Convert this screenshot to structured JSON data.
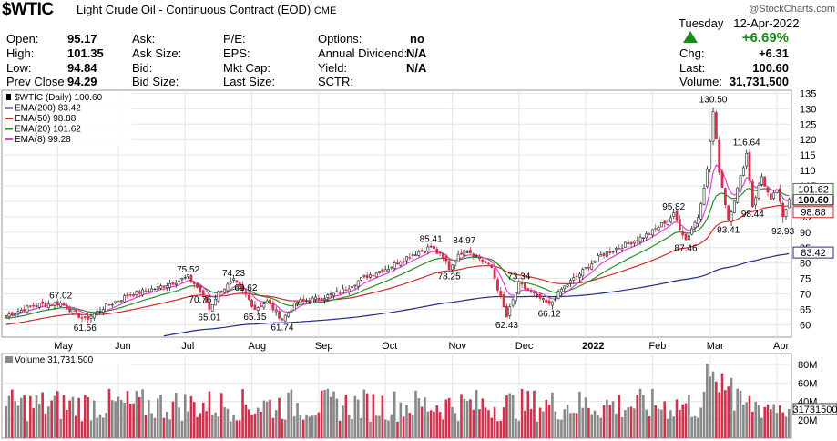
{
  "header": {
    "symbol": "$WTIC",
    "description": "Light Crude Oil - Continuous Contract (EOD)",
    "exchange": "CME",
    "watermark": "@StockCharts.com",
    "day": "Tuesday",
    "date": "12-Apr-2022",
    "change_pct": "+6.69%",
    "up_color": "#1a8a1a"
  },
  "quote": {
    "open_label": "Open:",
    "open": "95.17",
    "high_label": "High:",
    "high": "101.35",
    "low_label": "Low:",
    "low": "94.84",
    "prevclose_label": "Prev Close:",
    "prevclose": "94.29",
    "ask_label": "Ask:",
    "asksize_label": "Ask Size:",
    "bid_label": "Bid:",
    "bidsize_label": "Bid Size:",
    "pe_label": "P/E:",
    "eps_label": "EPS:",
    "mktcap_label": "Mkt Cap:",
    "lastsize_label": "Last Size:",
    "options_label": "Options:",
    "options": "no",
    "dividend_label": "Annual Dividend:",
    "dividend": "N/A",
    "yield_label": "Yield:",
    "yield": "N/A",
    "sctr_label": "SCTR:",
    "chg_label": "Chg:",
    "chg": "+6.31",
    "last_label": "Last:",
    "last": "100.60",
    "volume_label": "Volume:",
    "volume": "31,731,500"
  },
  "chart_data": {
    "type": "candlestick",
    "legend": [
      {
        "text": "$WTIC (Daily) 100.60",
        "color": "#000000"
      },
      {
        "text": "EMA(200) 83.42",
        "color": "#1f2e8c"
      },
      {
        "text": "EMA(50) 98.88",
        "color": "#d42a2a"
      },
      {
        "text": "EMA(20) 101.62",
        "color": "#2a8c2a"
      },
      {
        "text": "EMA(8) 99.28",
        "color": "#e040e0"
      }
    ],
    "price_ticks": [
      60,
      65,
      70,
      75,
      80,
      85,
      90,
      95,
      100,
      105,
      110,
      115,
      120,
      125,
      130,
      135
    ],
    "ylim": [
      56,
      136
    ],
    "price_badges": [
      {
        "label": "100.60",
        "value": 100.6,
        "color": "#000000",
        "bg": "#ffffff"
      },
      {
        "label": "101.62",
        "value": 101.62,
        "color": "#2a8c2a",
        "bg": "#ffffff"
      },
      {
        "label": "98.88",
        "value": 98.88,
        "color": "#d42a2a",
        "bg": "#ffffff"
      },
      {
        "label": "83.42",
        "value": 83.42,
        "color": "#1f2e8c",
        "bg": "#ffffff"
      }
    ],
    "months": [
      "May",
      "Jun",
      "Jul",
      "Aug",
      "Sep",
      "Oct",
      "Nov",
      "Dec",
      "2022",
      "Feb",
      "Mar",
      "Apr"
    ],
    "month_index": [
      17,
      37,
      59,
      81,
      103,
      125,
      147,
      169,
      191,
      213,
      232,
      254
    ],
    "annotations": [
      {
        "label": "67.02",
        "index": 18,
        "value": 67.02,
        "pos": "above"
      },
      {
        "label": "61.56",
        "index": 26,
        "value": 61.56,
        "pos": "below"
      },
      {
        "label": "75.52",
        "index": 60,
        "value": 75.52,
        "pos": "above"
      },
      {
        "label": "70.76",
        "index": 64,
        "value": 70.76,
        "pos": "below"
      },
      {
        "label": "65.01",
        "index": 67,
        "value": 65.01,
        "pos": "below"
      },
      {
        "label": "74.23",
        "index": 75,
        "value": 74.23,
        "pos": "above"
      },
      {
        "label": "69.62",
        "index": 79,
        "value": 69.62,
        "pos": "above"
      },
      {
        "label": "65.15",
        "index": 82,
        "value": 65.15,
        "pos": "below"
      },
      {
        "label": "61.74",
        "index": 91,
        "value": 61.74,
        "pos": "below"
      },
      {
        "label": "85.41",
        "index": 140,
        "value": 85.41,
        "pos": "above"
      },
      {
        "label": "84.97",
        "index": 151,
        "value": 84.97,
        "pos": "above"
      },
      {
        "label": "78.25",
        "index": 146,
        "value": 78.25,
        "pos": "below"
      },
      {
        "label": "73.34",
        "index": 169,
        "value": 73.34,
        "pos": "above"
      },
      {
        "label": "62.43",
        "index": 165,
        "value": 62.43,
        "pos": "below"
      },
      {
        "label": "66.12",
        "index": 179,
        "value": 66.12,
        "pos": "below"
      },
      {
        "label": "95.82",
        "index": 220,
        "value": 95.82,
        "pos": "above"
      },
      {
        "label": "87.46",
        "index": 224,
        "value": 87.46,
        "pos": "below"
      },
      {
        "label": "130.50",
        "index": 233,
        "value": 130.5,
        "pos": "above"
      },
      {
        "label": "93.41",
        "index": 238,
        "value": 93.41,
        "pos": "below"
      },
      {
        "label": "116.64",
        "index": 244,
        "value": 116.64,
        "pos": "above"
      },
      {
        "label": "98.44",
        "index": 246,
        "value": 98.44,
        "pos": "below"
      },
      {
        "label": "92.93",
        "index": 256,
        "value": 92.93,
        "pos": "below"
      }
    ],
    "anchors": [
      [
        0,
        63
      ],
      [
        10,
        66.5
      ],
      [
        18,
        67.0
      ],
      [
        24,
        63
      ],
      [
        26,
        61.6
      ],
      [
        32,
        65.5
      ],
      [
        40,
        69.5
      ],
      [
        50,
        72
      ],
      [
        60,
        75.5
      ],
      [
        64,
        71
      ],
      [
        67,
        65.2
      ],
      [
        70,
        70.5
      ],
      [
        75,
        74.2
      ],
      [
        79,
        69.6
      ],
      [
        82,
        65.2
      ],
      [
        86,
        67.5
      ],
      [
        91,
        61.8
      ],
      [
        96,
        67.5
      ],
      [
        103,
        68.5
      ],
      [
        110,
        70.5
      ],
      [
        118,
        75.5
      ],
      [
        126,
        78.5
      ],
      [
        133,
        82.5
      ],
      [
        140,
        85.2
      ],
      [
        145,
        80.5
      ],
      [
        146,
        78.3
      ],
      [
        151,
        84.8
      ],
      [
        156,
        81.5
      ],
      [
        160,
        78.5
      ],
      [
        163,
        68.5
      ],
      [
        165,
        62.5
      ],
      [
        169,
        73.2
      ],
      [
        173,
        70.5
      ],
      [
        176,
        68.5
      ],
      [
        179,
        66.3
      ],
      [
        183,
        71.5
      ],
      [
        189,
        76.5
      ],
      [
        196,
        82.5
      ],
      [
        204,
        86
      ],
      [
        212,
        89.5
      ],
      [
        220,
        95.6
      ],
      [
        224,
        87.6
      ],
      [
        228,
        95
      ],
      [
        231,
        110
      ],
      [
        233,
        129
      ],
      [
        235,
        110
      ],
      [
        238,
        94
      ],
      [
        241,
        104
      ],
      [
        244,
        115.5
      ],
      [
        246,
        98.5
      ],
      [
        249,
        108
      ],
      [
        252,
        100
      ],
      [
        254,
        104
      ],
      [
        256,
        94.5
      ],
      [
        258,
        100.6
      ]
    ],
    "volume_ticks": [
      {
        "label": "20M",
        "value": 20
      },
      {
        "label": "40M",
        "value": 40
      },
      {
        "label": "60M",
        "value": 60
      },
      {
        "label": "80M",
        "value": 80
      }
    ],
    "volume_ylim": [
      0,
      92
    ],
    "volume_legend": "Volume 31,731,500",
    "volume_badge": "31731500",
    "volume_last": 31.7315
  }
}
